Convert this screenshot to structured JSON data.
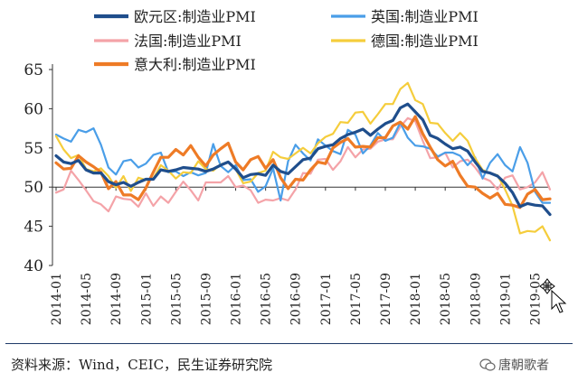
{
  "chart_data": {
    "type": "line",
    "title": "",
    "xlabel": "",
    "ylabel": "",
    "ylim": [
      40,
      65
    ],
    "yticks": [
      40,
      45,
      50,
      55,
      60,
      65
    ],
    "grid": false,
    "legend_position": "top",
    "x_tick_labels": [
      "2014-01",
      "2014-05",
      "2014-09",
      "2015-01",
      "2015-05",
      "2015-09",
      "2016-01",
      "2016-05",
      "2016-09",
      "2017-01",
      "2017-05",
      "2017-09",
      "2018-01",
      "2018-05",
      "2018-09",
      "2019-01",
      "2019-05"
    ],
    "x": [
      "2014-01",
      "2014-02",
      "2014-03",
      "2014-04",
      "2014-05",
      "2014-06",
      "2014-07",
      "2014-08",
      "2014-09",
      "2014-10",
      "2014-11",
      "2014-12",
      "2015-01",
      "2015-02",
      "2015-03",
      "2015-04",
      "2015-05",
      "2015-06",
      "2015-07",
      "2015-08",
      "2015-09",
      "2015-10",
      "2015-11",
      "2015-12",
      "2016-01",
      "2016-02",
      "2016-03",
      "2016-04",
      "2016-05",
      "2016-06",
      "2016-07",
      "2016-08",
      "2016-09",
      "2016-10",
      "2016-11",
      "2016-12",
      "2017-01",
      "2017-02",
      "2017-03",
      "2017-04",
      "2017-05",
      "2017-06",
      "2017-07",
      "2017-08",
      "2017-09",
      "2017-10",
      "2017-11",
      "2017-12",
      "2018-01",
      "2018-02",
      "2018-03",
      "2018-04",
      "2018-05",
      "2018-06",
      "2018-07",
      "2018-08",
      "2018-09",
      "2018-10",
      "2018-11",
      "2018-12",
      "2019-01",
      "2019-02",
      "2019-03",
      "2019-04",
      "2019-05",
      "2019-06",
      "2019-07"
    ],
    "series": [
      {
        "name": "欧元区:制造业PMI",
        "color": "#1f4e8c",
        "width": 3.2,
        "values": [
          54.0,
          53.2,
          53.0,
          53.4,
          52.2,
          51.8,
          51.8,
          50.7,
          50.3,
          50.6,
          50.1,
          50.6,
          51.0,
          51.0,
          52.2,
          52.0,
          52.2,
          52.5,
          52.4,
          52.3,
          52.0,
          52.3,
          52.8,
          53.2,
          52.3,
          51.2,
          51.6,
          51.7,
          51.5,
          52.8,
          52.0,
          51.7,
          52.6,
          53.5,
          53.7,
          54.9,
          55.2,
          55.4,
          56.2,
          56.7,
          57.0,
          57.4,
          56.6,
          57.4,
          58.1,
          58.5,
          60.1,
          60.6,
          59.6,
          58.6,
          56.6,
          56.2,
          55.5,
          54.9,
          55.1,
          54.6,
          53.2,
          52.0,
          51.8,
          51.4,
          50.5,
          49.3,
          47.5,
          47.9,
          47.7,
          47.6,
          46.5
        ]
      },
      {
        "name": "英国:制造业PMI",
        "color": "#4a9ee8",
        "width": 2.2,
        "values": [
          56.7,
          56.2,
          55.8,
          57.3,
          57.0,
          57.5,
          55.4,
          52.5,
          51.6,
          53.3,
          53.5,
          52.5,
          53.0,
          54.1,
          54.4,
          51.9,
          52.0,
          51.4,
          51.9,
          51.5,
          51.8,
          55.5,
          52.7,
          51.9,
          52.8,
          50.9,
          51.0,
          49.4,
          50.1,
          52.4,
          48.3,
          53.3,
          55.4,
          54.3,
          53.4,
          56.1,
          55.3,
          54.6,
          54.2,
          57.3,
          56.7,
          54.3,
          55.3,
          56.9,
          55.9,
          56.3,
          58.2,
          56.3,
          55.3,
          55.2,
          54.9,
          53.9,
          54.4,
          54.4,
          54.0,
          52.8,
          53.8,
          51.1,
          53.1,
          54.2,
          52.8,
          52.0,
          55.1,
          53.1,
          49.4,
          48.0,
          48.0
        ]
      },
      {
        "name": "法国:制造业PMI",
        "color": "#f4a3a8",
        "width": 2.2,
        "values": [
          49.3,
          49.7,
          52.1,
          50.9,
          49.6,
          48.2,
          47.8,
          46.9,
          48.8,
          48.5,
          48.4,
          47.5,
          49.2,
          47.6,
          48.8,
          48.0,
          49.4,
          50.7,
          49.6,
          48.3,
          50.6,
          50.6,
          50.6,
          51.4,
          50.0,
          50.2,
          49.6,
          48.0,
          48.4,
          48.3,
          48.6,
          48.3,
          49.7,
          51.8,
          51.7,
          53.5,
          53.6,
          52.2,
          53.3,
          55.1,
          53.8,
          54.8,
          54.9,
          55.8,
          56.1,
          56.1,
          57.7,
          58.8,
          58.4,
          55.9,
          53.7,
          53.8,
          54.4,
          52.5,
          53.3,
          53.5,
          52.5,
          51.2,
          50.8,
          49.7,
          51.2,
          51.5,
          49.7,
          50.0,
          50.6,
          51.9,
          49.7
        ]
      },
      {
        "name": "德国:制造业PMI",
        "color": "#f5cd3c",
        "width": 2.2,
        "values": [
          56.5,
          54.8,
          53.7,
          54.1,
          52.3,
          52.0,
          52.4,
          51.4,
          49.9,
          51.4,
          49.5,
          51.2,
          50.9,
          51.1,
          52.8,
          52.1,
          51.1,
          51.9,
          51.8,
          53.3,
          52.3,
          52.1,
          52.9,
          53.2,
          52.3,
          50.5,
          50.7,
          51.8,
          52.1,
          54.5,
          53.8,
          53.6,
          54.3,
          55.0,
          54.3,
          55.6,
          56.4,
          56.8,
          58.3,
          58.2,
          59.5,
          59.6,
          58.1,
          59.3,
          60.6,
          60.6,
          62.5,
          63.3,
          61.1,
          60.6,
          58.2,
          58.1,
          56.9,
          55.9,
          56.9,
          55.9,
          53.7,
          52.2,
          51.8,
          51.5,
          49.7,
          47.6,
          44.1,
          44.4,
          44.3,
          45.0,
          43.2
        ]
      },
      {
        "name": "意大利:制造业PMI",
        "color": "#ee7b26",
        "width": 3.2,
        "values": [
          53.1,
          52.3,
          52.4,
          54.0,
          53.2,
          52.6,
          51.9,
          49.8,
          50.7,
          49.0,
          49.0,
          48.4,
          49.9,
          51.9,
          53.8,
          53.8,
          54.8,
          54.1,
          55.3,
          53.8,
          52.7,
          54.1,
          54.9,
          55.6,
          53.2,
          52.2,
          53.5,
          53.9,
          52.4,
          53.5,
          51.2,
          49.8,
          51.0,
          50.9,
          52.2,
          53.2,
          53.0,
          55.0,
          55.7,
          56.2,
          55.1,
          55.2,
          55.1,
          56.3,
          56.3,
          57.8,
          58.3,
          57.4,
          59.0,
          56.8,
          55.1,
          53.5,
          52.7,
          53.3,
          51.5,
          50.1,
          50.0,
          49.2,
          48.6,
          49.2,
          47.8,
          47.7,
          47.4,
          49.1,
          49.7,
          48.4,
          48.5
        ]
      }
    ]
  },
  "legend_entries": [
    "欧元区:制造业PMI",
    "英国:制造业PMI",
    "法国:制造业PMI",
    "德国:制造业PMI",
    "意大利:制造业PMI"
  ],
  "footer": {
    "source": "资料来源：Wind，CEIC，民生证券研究院",
    "watermark": "唐朝歌者"
  }
}
